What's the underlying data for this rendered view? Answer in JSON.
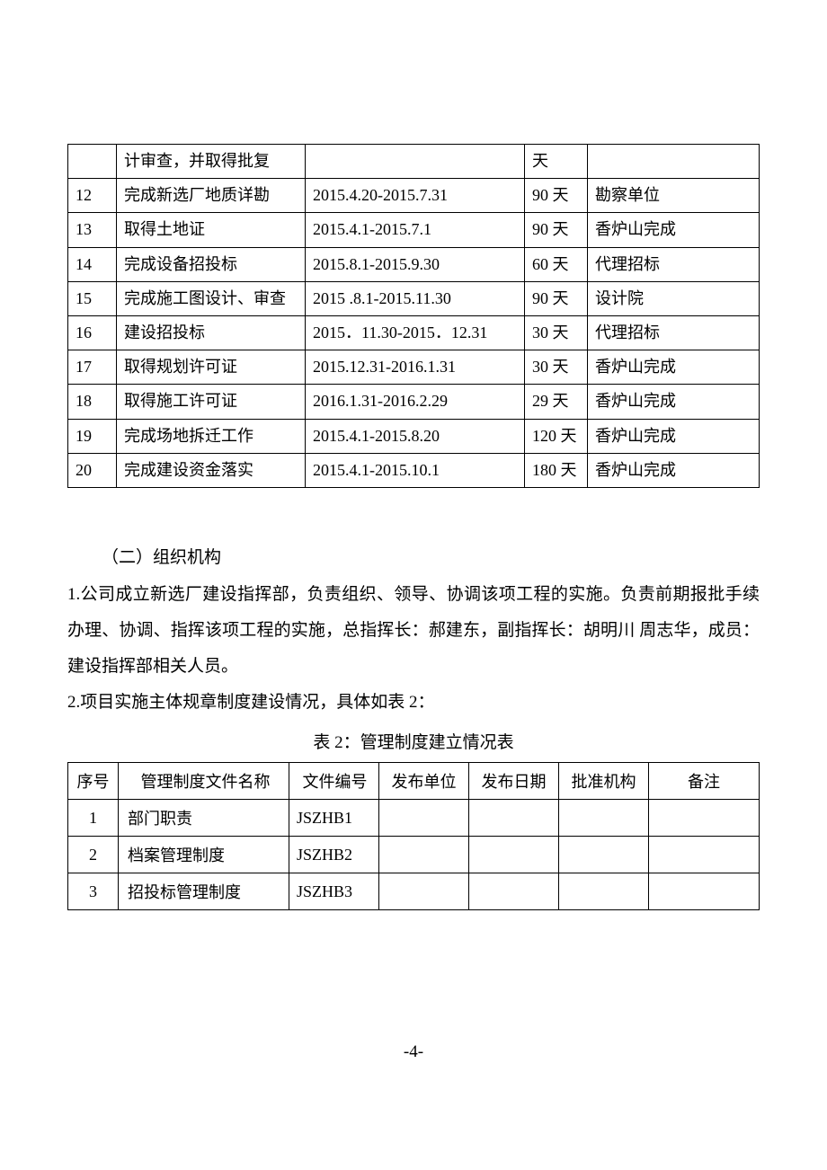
{
  "table1": {
    "rows": [
      {
        "num": "",
        "task": "计审查，并取得批复",
        "dates": "",
        "days": "天",
        "owner": ""
      },
      {
        "num": "12",
        "task": "完成新选厂地质详勘",
        "dates": "2015.4.20-2015.7.31",
        "days": "90 天",
        "owner": "勘察单位"
      },
      {
        "num": "13",
        "task": "取得土地证",
        "dates": "2015.4.1-2015.7.1",
        "days": "90 天",
        "owner": "香炉山完成"
      },
      {
        "num": "14",
        "task": "完成设备招投标",
        "dates": "2015.8.1-2015.9.30",
        "days": "60 天",
        "owner": "代理招标"
      },
      {
        "num": "15",
        "task": "完成施工图设计、审查",
        "dates": "2015 .8.1-2015.11.30",
        "days": "90 天",
        "owner": "设计院"
      },
      {
        "num": "16",
        "task": "建设招投标",
        "dates": "2015．11.30-2015．12.31",
        "days": "30 天",
        "owner": "代理招标"
      },
      {
        "num": "17",
        "task": "取得规划许可证",
        "dates": "2015.12.31-2016.1.31",
        "days": "30 天",
        "owner": "香炉山完成"
      },
      {
        "num": "18",
        "task": "取得施工许可证",
        "dates": "2016.1.31-2016.2.29",
        "days": "29 天",
        "owner": "香炉山完成"
      },
      {
        "num": "19",
        "task": "完成场地拆迁工作",
        "dates": "2015.4.1-2015.8.20",
        "days": "120 天",
        "owner": "香炉山完成"
      },
      {
        "num": "20",
        "task": "完成建设资金落实",
        "dates": "2015.4.1-2015.10.1",
        "days": "180 天",
        "owner": "香炉山完成"
      }
    ]
  },
  "section_heading": "（二）组织机构",
  "paragraph1": "1.公司成立新选厂建设指挥部，负责组织、领导、协调该项工程的实施。负责前期报批手续办理、协调、指挥该项工程的实施，总指挥长：郝建东，副指挥长：胡明川 周志华，成员：建设指挥部相关人员。",
  "paragraph2": "2.项目实施主体规章制度建设情况，具体如表 2：",
  "table2_caption": "表 2：管理制度建立情况表",
  "table2": {
    "headers": [
      "序号",
      "管理制度文件名称",
      "文件编号",
      "发布单位",
      "发布日期",
      "批准机构",
      "备注"
    ],
    "rows": [
      {
        "num": "1",
        "name": "部门职责",
        "code": "JSZHB1",
        "unit": "",
        "date": "",
        "approver": "",
        "note": ""
      },
      {
        "num": "2",
        "name": "档案管理制度",
        "code": "JSZHB2",
        "unit": "",
        "date": "",
        "approver": "",
        "note": ""
      },
      {
        "num": "3",
        "name": "招投标管理制度",
        "code": "JSZHB3",
        "unit": "",
        "date": "",
        "approver": "",
        "note": ""
      }
    ]
  },
  "page_number": "-4-"
}
